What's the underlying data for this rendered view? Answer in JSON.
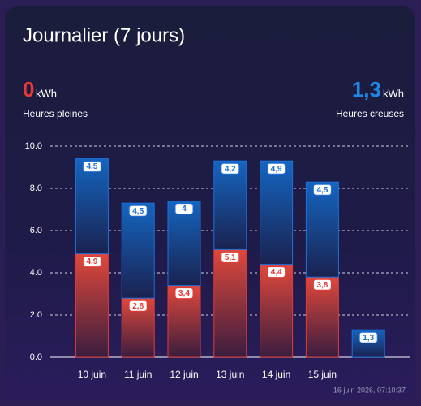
{
  "chart_data": {
    "type": "stacked_bar",
    "title": "Journalier (7 jours)",
    "categories": [
      "10 juin",
      "11 juin",
      "12 juin",
      "13 juin",
      "14 juin",
      "15 juin",
      null
    ],
    "series": [
      {
        "name": "Heures pleines",
        "color": "#e53935",
        "summary": "0",
        "unit": "kWh",
        "values": [
          4.9,
          2.8,
          3.4,
          5.1,
          4.4,
          3.8,
          0
        ],
        "value_labels": [
          "4,9",
          "2,8",
          "3,4",
          "5,1",
          "4,4",
          "3,8",
          null
        ]
      },
      {
        "name": "Heures creuses",
        "color": "#1e6fd9",
        "summary": "1,3",
        "unit": "kWh",
        "values": [
          4.5,
          4.5,
          4,
          4.2,
          4.9,
          4.5,
          1.3
        ],
        "value_labels": [
          "4,5",
          "4,5",
          "4",
          "4,2",
          "4,9",
          "4,5",
          "1,3"
        ]
      }
    ],
    "ylim": [
      0,
      10
    ],
    "yticks": [
      {
        "value": 0,
        "label": "0.0"
      },
      {
        "value": 2,
        "label": "2.0"
      },
      {
        "value": 4,
        "label": "4.0"
      },
      {
        "value": 6,
        "label": "6.0"
      },
      {
        "value": 8,
        "label": "8.0"
      },
      {
        "value": 10,
        "label": "10.0"
      }
    ],
    "grid": true,
    "timestamp": "16 juin 2026, 07:10:37"
  }
}
